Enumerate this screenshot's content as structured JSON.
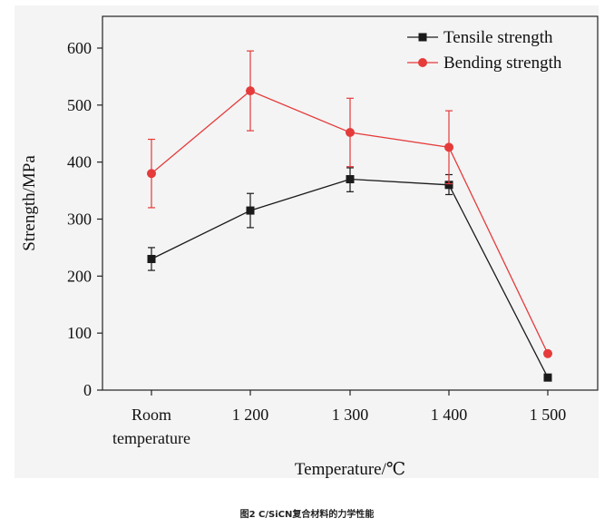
{
  "caption": "图2 C/SiCN复合材料的力学性能",
  "chart_data": {
    "type": "line",
    "categories": [
      [
        "Room",
        "temperature"
      ],
      [
        "1 200"
      ],
      [
        "1 300"
      ],
      [
        "1 400"
      ],
      [
        "1 500"
      ]
    ],
    "xlabel": "Temperature/℃",
    "ylabel": "Strength/MPa",
    "ylim": [
      0,
      650
    ],
    "yticks": [
      0,
      100,
      200,
      300,
      400,
      500,
      600
    ],
    "grid": false,
    "legend": "top-right",
    "series": [
      {
        "name": "Tensile strength",
        "color": "#1a1a1a",
        "marker": "square",
        "values": [
          230,
          315,
          370,
          360,
          22
        ],
        "error_low": [
          210,
          285,
          348,
          343,
          null
        ],
        "error_high": [
          250,
          345,
          390,
          378,
          null
        ]
      },
      {
        "name": "Bending strength",
        "color": "#e53b3b",
        "marker": "circle",
        "values": [
          380,
          525,
          452,
          426,
          64
        ],
        "error_low": [
          320,
          455,
          392,
          362,
          null
        ],
        "error_high": [
          440,
          595,
          512,
          490,
          null
        ]
      }
    ]
  }
}
